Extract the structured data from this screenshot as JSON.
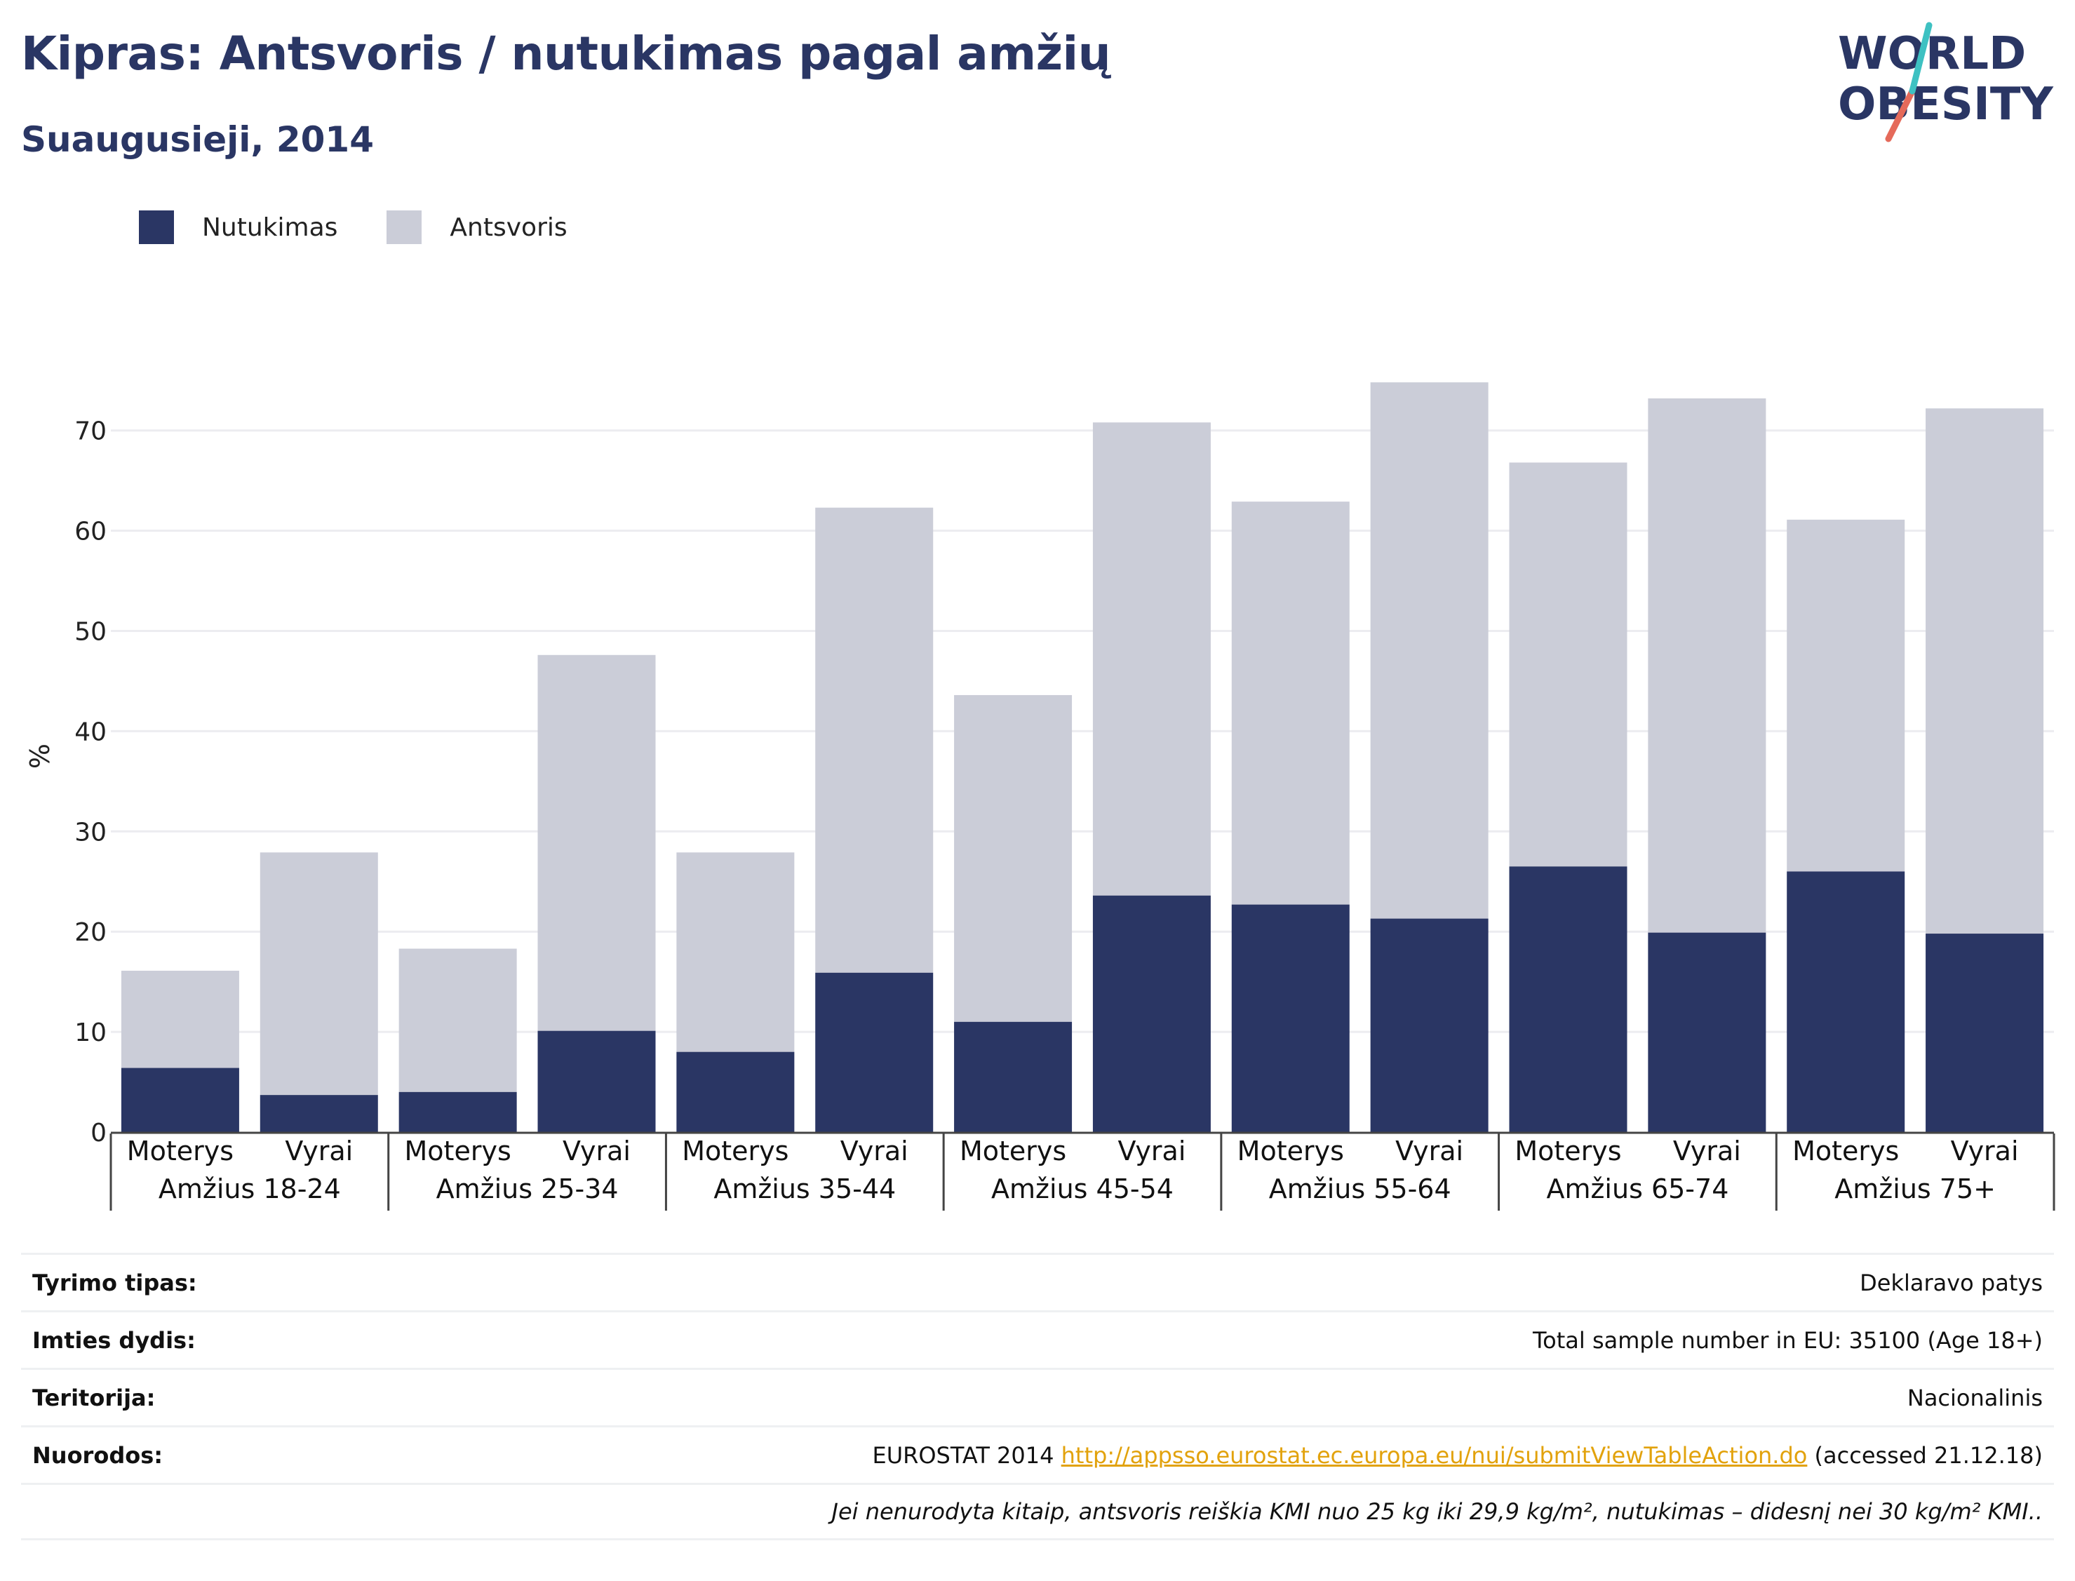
{
  "header": {
    "title": "Kipras: Antsvoris / nutukimas pagal amžių",
    "subtitle": "Suaugusieji, 2014"
  },
  "logo": {
    "line1": "WORLD",
    "line2": "OBESITY"
  },
  "colors": {
    "obesity": "#2a3664",
    "overweight": "#cbcdd8",
    "title": "#2a3664",
    "link": "#e2a20c"
  },
  "legend": [
    {
      "label": "Nutukimas",
      "color": "#2a3664"
    },
    {
      "label": "Antsvoris",
      "color": "#cbcdd8"
    }
  ],
  "chart_data": {
    "type": "bar",
    "stacked": true,
    "ylabel": "%",
    "ylim": [
      0,
      75
    ],
    "yticks": [
      0,
      10,
      20,
      30,
      40,
      50,
      60,
      70
    ],
    "grid": true,
    "legend_position": "top-left",
    "groups": [
      "Amžius 18-24",
      "Amžius 25-34",
      "Amžius 35-44",
      "Amžius 45-54",
      "Amžius 55-64",
      "Amžius 65-74",
      "Amžius 75+"
    ],
    "categories": [
      "Moterys",
      "Vyrai",
      "Moterys",
      "Vyrai",
      "Moterys",
      "Vyrai",
      "Moterys",
      "Vyrai",
      "Moterys",
      "Vyrai",
      "Moterys",
      "Vyrai",
      "Moterys",
      "Vyrai"
    ],
    "series": [
      {
        "name": "Nutukimas",
        "values": [
          6.4,
          3.7,
          4.0,
          10.1,
          8.0,
          15.9,
          11.0,
          23.6,
          22.7,
          21.3,
          26.5,
          19.9,
          26.0,
          19.8
        ]
      },
      {
        "name": "Antsvoris",
        "values": [
          9.7,
          24.2,
          14.3,
          37.5,
          19.9,
          46.4,
          32.6,
          47.2,
          40.2,
          53.5,
          40.3,
          53.3,
          35.1,
          52.4
        ]
      }
    ]
  },
  "info": {
    "survey_type": {
      "label": "Tyrimo tipas:",
      "value": "Deklaravo patys"
    },
    "sample_size": {
      "label": "Imties dydis:",
      "value": "Total sample number in EU: 35100 (Age 18+)"
    },
    "territory": {
      "label": "Teritorija:",
      "value": "Nacionalinis"
    },
    "references": {
      "label": "Nuorodos:",
      "prefix": "EUROSTAT 2014 ",
      "link": "http://appsso.eurostat.ec.europa.eu/nui/submitViewTableAction.do",
      "suffix": " (accessed 21.12.18)"
    },
    "note": "Jei nenurodyta kitaip, antsvoris reiškia KMI nuo 25 kg iki 29,9 kg/m², nutukimas – didesnį nei 30 kg/m² KMI.."
  }
}
